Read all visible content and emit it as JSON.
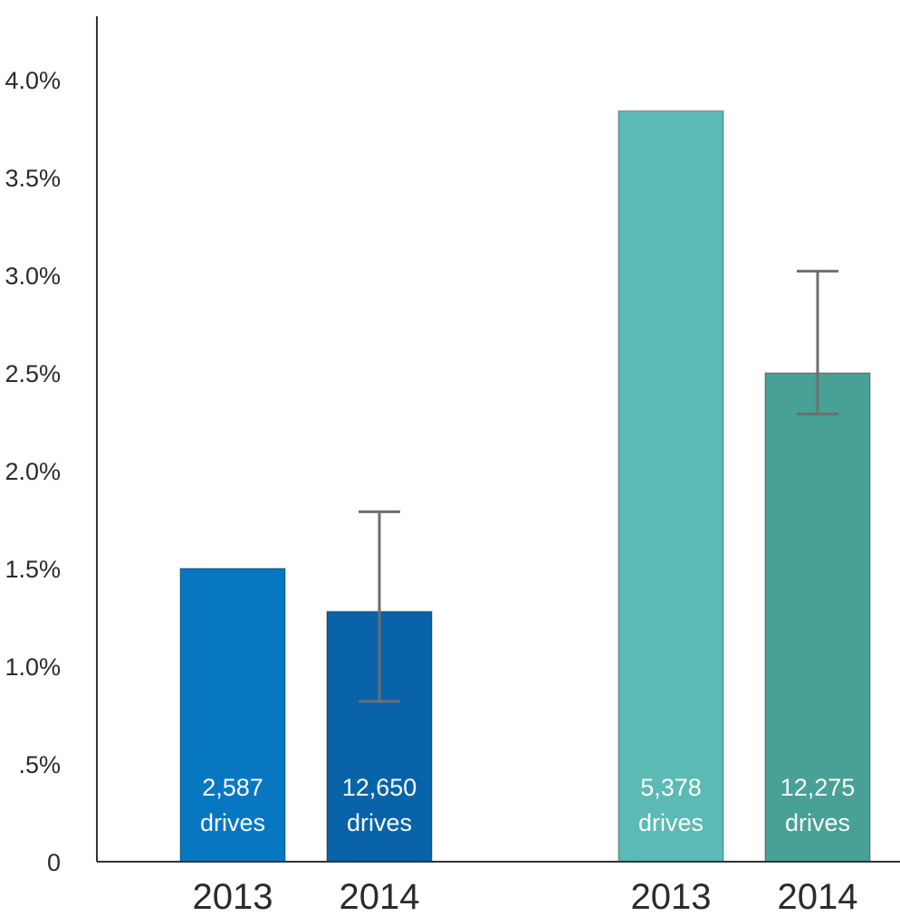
{
  "chart_data": {
    "type": "bar",
    "title": "",
    "xlabel": "",
    "ylabel": "",
    "ylim": [
      0,
      4.3
    ],
    "grid": false,
    "legend": "none",
    "y_ticks": [
      {
        "value": 0,
        "label": "0"
      },
      {
        "value": 0.5,
        "label": ".5%"
      },
      {
        "value": 1.0,
        "label": "1.0%"
      },
      {
        "value": 1.5,
        "label": "1.5%"
      },
      {
        "value": 2.0,
        "label": "2.0%"
      },
      {
        "value": 2.5,
        "label": "2.5%"
      },
      {
        "value": 3.0,
        "label": "3.0%"
      },
      {
        "value": 3.5,
        "label": "3.5%"
      },
      {
        "value": 4.0,
        "label": "4.0%"
      }
    ],
    "bars": [
      {
        "category": "2013",
        "value": 1.5,
        "label_line1": "2,587",
        "label_line2": "drives",
        "color": "#0877c2",
        "error": null
      },
      {
        "category": "2014",
        "value": 1.28,
        "label_line1": "12,650",
        "label_line2": "drives",
        "color": "#0863a8",
        "error": [
          0.82,
          1.79
        ]
      },
      {
        "category": "2013",
        "value": 3.84,
        "label_line1": "5,378",
        "label_line2": "drives",
        "color": "#5bbab4",
        "error": null
      },
      {
        "category": "2014",
        "value": 2.5,
        "label_line1": "12,275",
        "label_line2": "drives",
        "color": "#48a096",
        "error": [
          2.29,
          3.02
        ]
      }
    ],
    "colors": {
      "axis": "#333333",
      "errorbar": "#6e6e6e"
    }
  }
}
